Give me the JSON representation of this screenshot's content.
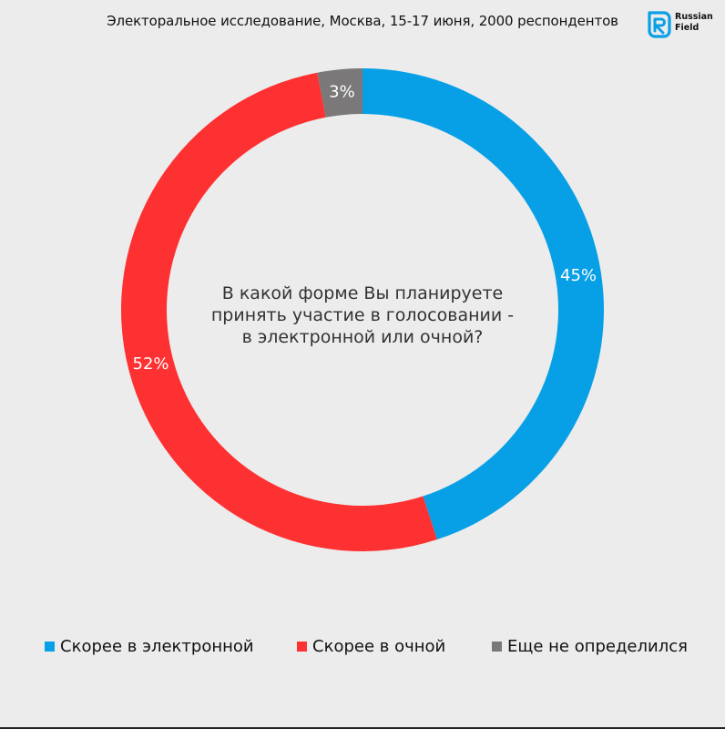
{
  "header": {
    "subtitle": "Электоральное исследование, Москва, 15-17 июня, 2000 респондентов",
    "logo": {
      "icon": "russian-field-logo-icon",
      "line1": "Russian",
      "line2": "Field",
      "color": "#0aa0e6"
    }
  },
  "chart_data": {
    "type": "pie",
    "donut": true,
    "title": "В какой форме Вы планируете принять участие в голосовании - в электронной или очной?",
    "title_lines": [
      "В какой форме Вы планируете",
      "принять участие в голосовании -",
      "в электронной или очной?"
    ],
    "slices": [
      {
        "name": "Скорее в электронной",
        "value": 45,
        "label": "45%",
        "color": "#079fe6"
      },
      {
        "name": "Скорее в очной",
        "value": 52,
        "label": "52%",
        "color": "#fe3132"
      },
      {
        "name": "Еще не определился",
        "value": 3,
        "label": "3%",
        "color": "#7a7878"
      }
    ],
    "legend_position": "bottom"
  }
}
